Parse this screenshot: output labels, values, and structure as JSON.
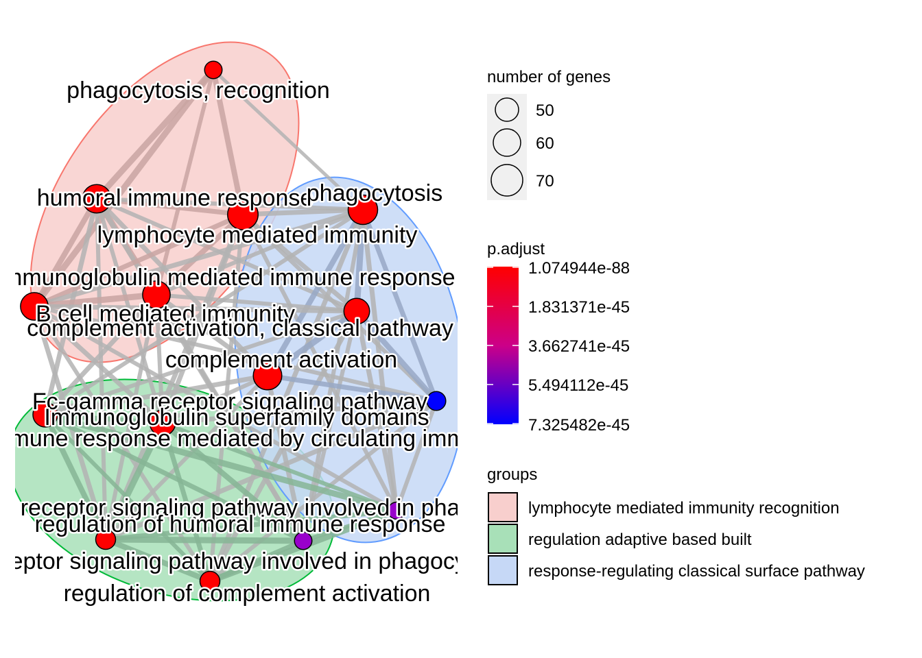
{
  "nodes": [
    {
      "label": "phagocytosis, recognition",
      "color": "#ff0000",
      "genes": 45
    },
    {
      "label": "humoral immune response",
      "color": "#ff0000",
      "genes": 68
    },
    {
      "label": "lymphocyte mediated immunity",
      "color": "#ff0000",
      "genes": 72
    },
    {
      "label": "phagocytosis",
      "color": "#ff0000",
      "genes": 70
    },
    {
      "label": "immunoglobulin mediated immune response",
      "color": "#ff0000",
      "genes": 66
    },
    {
      "label": "B cell mediated immunity",
      "color": "#ff0000",
      "genes": 66
    },
    {
      "label": "complement activation, classical pathway",
      "color": "#ff0000",
      "genes": 62
    },
    {
      "label": "complement activation",
      "color": "#ff0000",
      "genes": 68
    },
    {
      "label": "Fc-gamma receptor signaling pathway",
      "color": "#0000ff",
      "genes": 48
    },
    {
      "label": "Immunoglobulin superfamily domains",
      "color": "#ff0000",
      "genes": 62
    },
    {
      "label": "humoral immune response mediated by circulating immunoglobulin",
      "color": "#ff0000",
      "genes": 60
    },
    {
      "label": "Fc-gamma receptor signaling pathway involved in phagocytosis",
      "color": "#9900cc",
      "genes": 44
    },
    {
      "label": "regulation of humoral immune response",
      "color": "#ff0000",
      "genes": 50
    },
    {
      "label": "Fc receptor signaling pathway involved in phagocytosis",
      "color": "#9900cc",
      "genes": 45
    },
    {
      "label": "regulation of complement activation",
      "color": "#ff0000",
      "genes": 50
    }
  ],
  "groups": [
    {
      "name": "lymphocyte mediated immunity recognition",
      "fill": "#f8cfcd",
      "stroke": "#f8766d"
    },
    {
      "name": "regulation adaptive based built",
      "fill": "#a8e0b8",
      "stroke": "#00ba38"
    },
    {
      "name": "response-regulating classical surface pathway",
      "fill": "#c6d8f6",
      "stroke": "#619cff"
    }
  ],
  "legend": {
    "size_title": "number of genes",
    "size_levels": [
      "50",
      "60",
      "70"
    ],
    "color_title": "p.adjust",
    "color_ticks": [
      "1.074944e-88",
      "1.831371e-45",
      "3.662741e-45",
      "5.494112e-45",
      "7.325482e-45"
    ],
    "color_high": "#ff0000",
    "color_low": "#0000ff",
    "groups_title": "groups"
  }
}
